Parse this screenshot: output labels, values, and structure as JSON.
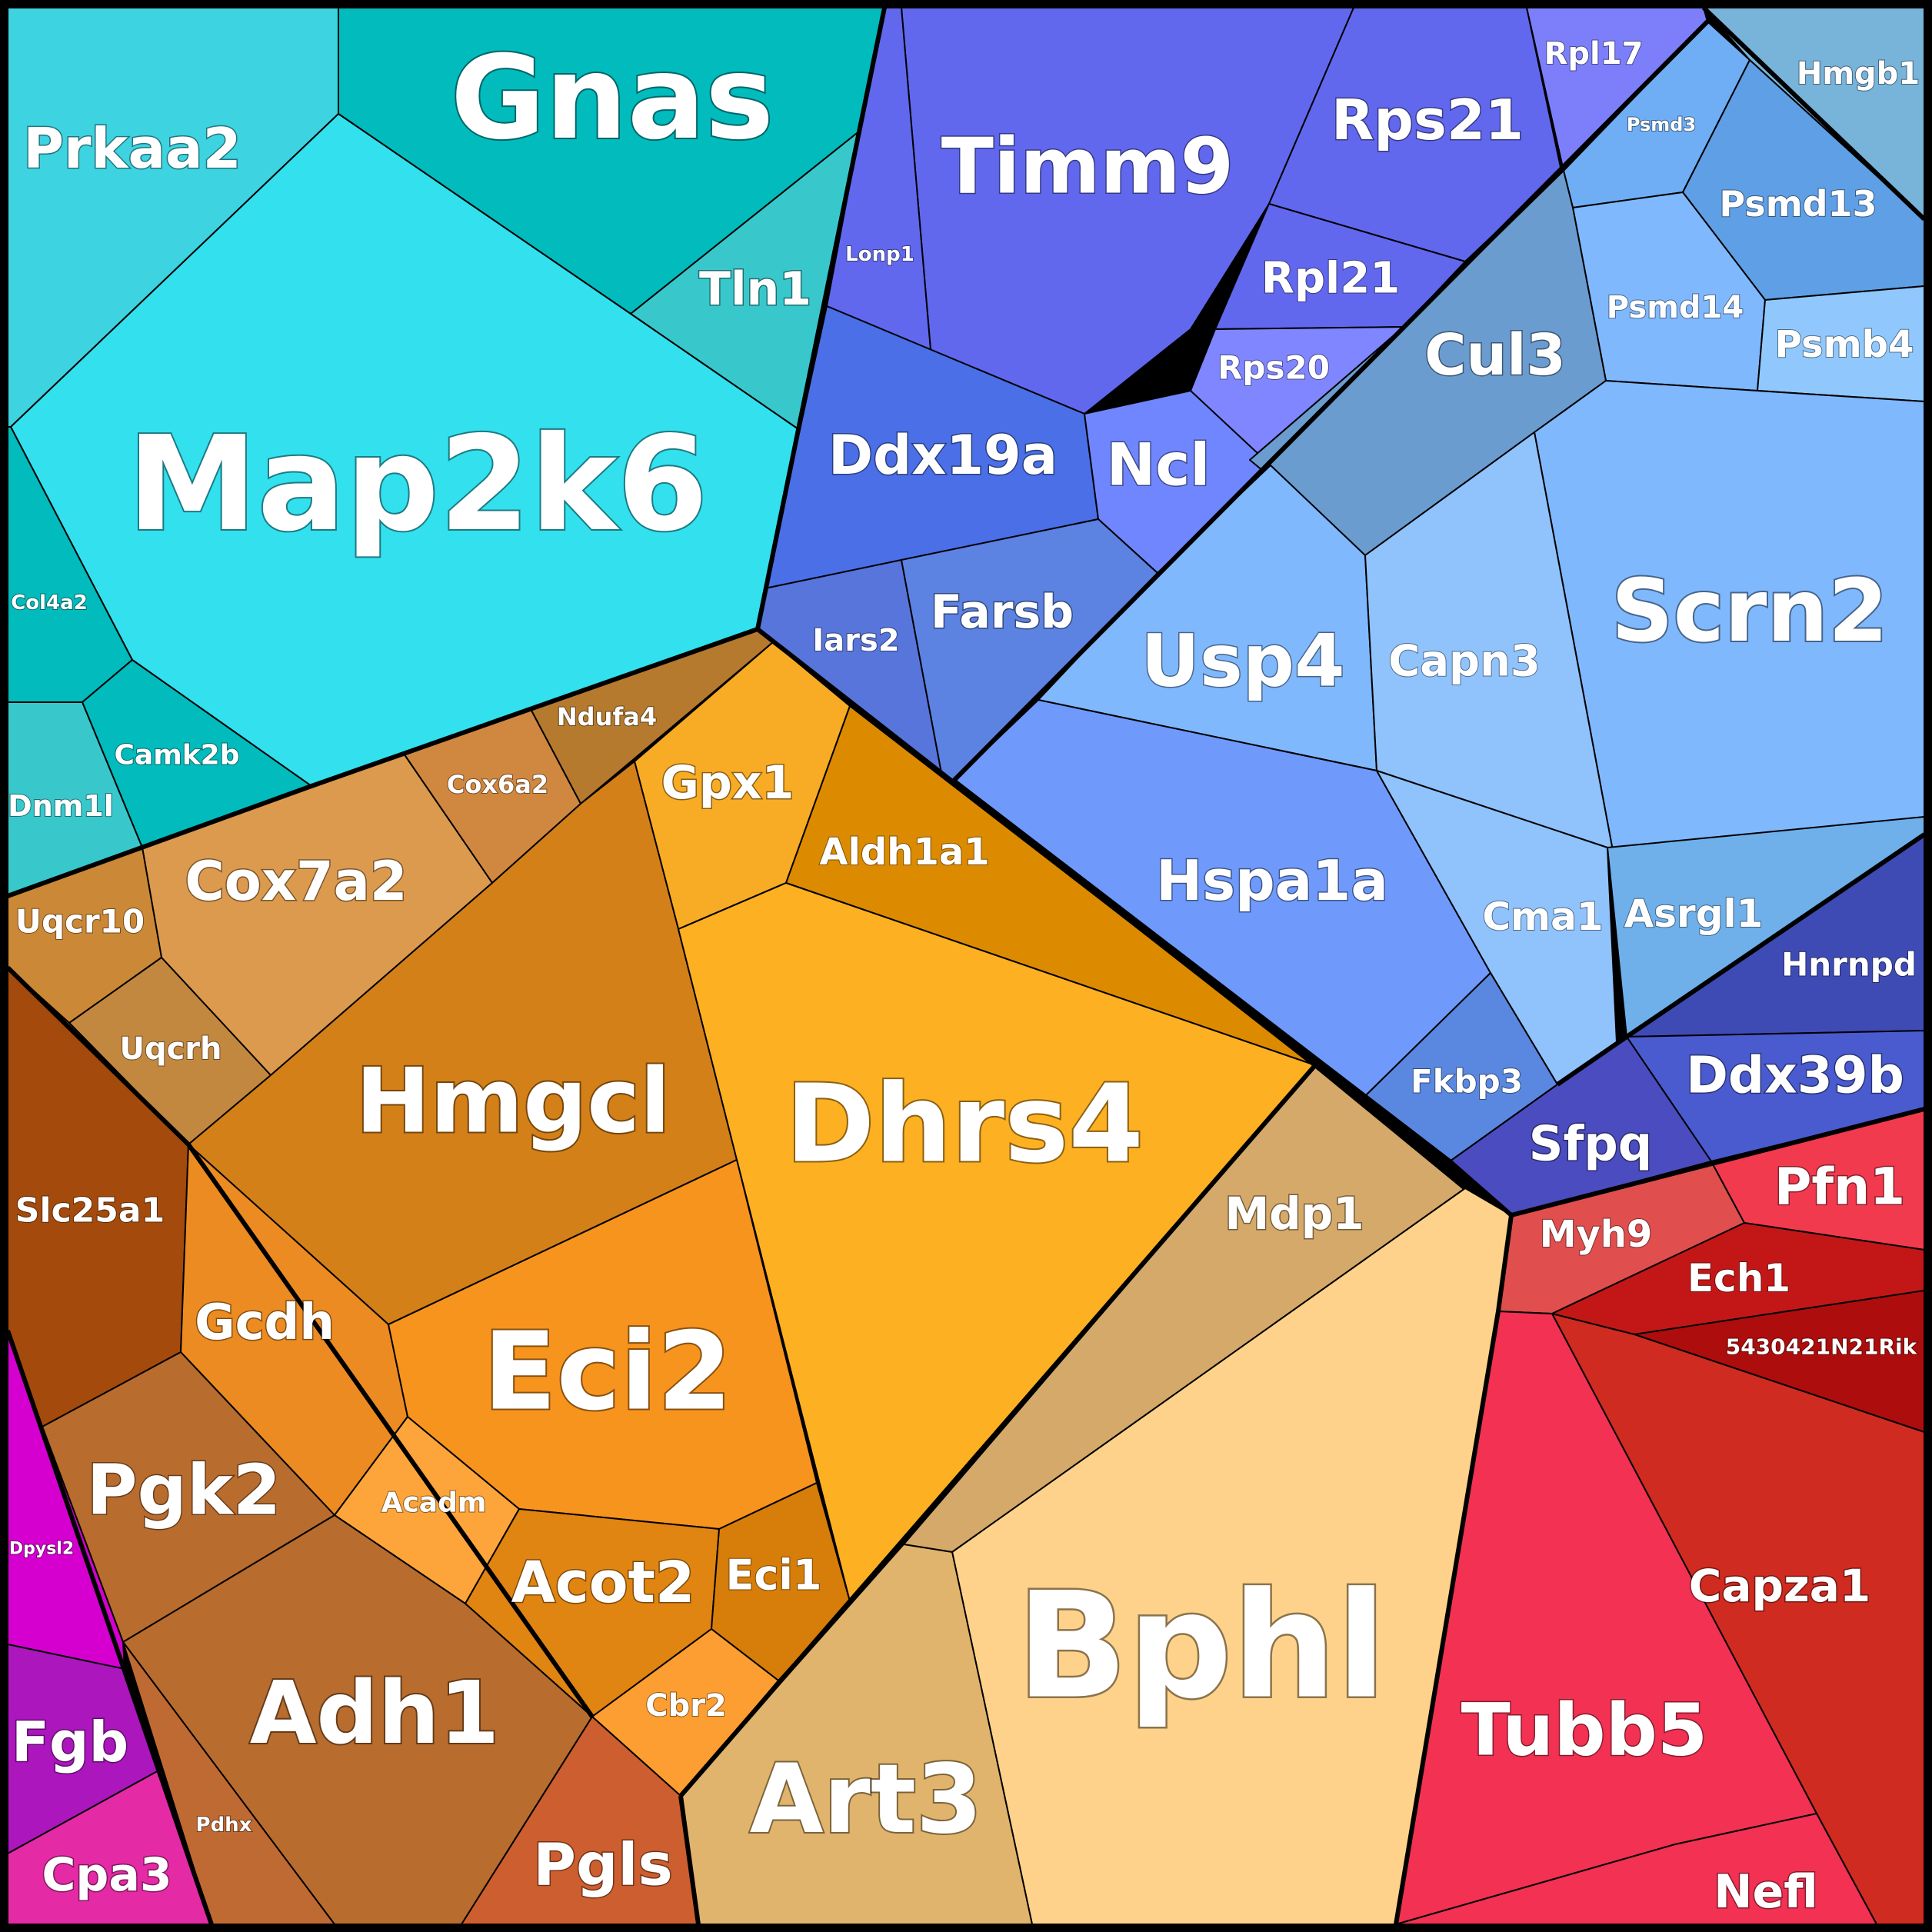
{
  "labels": {
    "gnas": "Gnas",
    "prkaa2": "Prkaa2",
    "tln1": "Tln1",
    "map2k6": "Map2k6",
    "col4a2": "Col4a2",
    "camk2b": "Camk2b",
    "dnm1l": "Dnm1l",
    "timm9": "Timm9",
    "lonp1": "Lonp1",
    "rps21": "Rps21",
    "rpl17": "Rpl17",
    "rpl21": "Rpl21",
    "rps20": "Rps20",
    "ddx19a": "Ddx19a",
    "ncl": "Ncl",
    "iars2": "Iars2",
    "farsb": "Farsb",
    "hmgb1": "Hmgb1",
    "psmd3": "Psmd3",
    "psmd13": "Psmd13",
    "psmd14": "Psmd14",
    "psmb4": "Psmb4",
    "cul3": "Cul3",
    "scrn2": "Scrn2",
    "usp4": "Usp4",
    "capn3": "Capn3",
    "hspa1a": "Hspa1a",
    "cma1": "Cma1",
    "asrgl1": "Asrgl1",
    "fkbp3": "Fkbp3",
    "hnrnpd": "Hnrnpd",
    "ddx39b": "Ddx39b",
    "sfpq": "Sfpq",
    "ndufa4": "Ndufa4",
    "cox6a2": "Cox6a2",
    "cox7a2": "Cox7a2",
    "uqcr10": "Uqcr10",
    "uqcrh": "Uqcrh",
    "gpx1": "Gpx1",
    "aldh1a1": "Aldh1a1",
    "hmgcl": "Hmgcl",
    "dhrs4": "Dhrs4",
    "slc25a1": "Slc25a1",
    "gcdh": "Gcdh",
    "eci2": "Eci2",
    "acadm": "Acadm",
    "acot2": "Acot2",
    "eci1": "Eci1",
    "cbr2": "Cbr2",
    "pgk2": "Pgk2",
    "adh1": "Adh1",
    "pdhx": "Pdhx",
    "pgls": "Pgls",
    "mdp1": "Mdp1",
    "bphl": "Bphl",
    "art3": "Art3",
    "myh9": "Myh9",
    "pfn1": "Pfn1",
    "ech1": "Ech1",
    "gene5430421n21rik": "5430421N21Rik",
    "capza1": "Capza1",
    "tubb5": "Tubb5",
    "nefl": "Nefl",
    "dpysl2": "Dpysl2",
    "fgb": "Fgb",
    "cpa3": "Cpa3"
  },
  "colors": {
    "teal_dark": "#02BBBD",
    "teal_light": "#3DD3E0",
    "teal_mid": "#38C8CC",
    "cyan": "#33E0EE",
    "indigo": "#6168EE",
    "indigo_light": "#7D7FFA",
    "royal": "#4A6FE6",
    "periwinkle": "#7F86FF",
    "sky": "#80B8FD",
    "sky_light": "#90C2FB",
    "steel": "#6B9CD0",
    "cornflower": "#6F9AFC",
    "navy": "#3F4BB5",
    "brown_dark": "#A34A0C",
    "brown_mid": "#B86C2E",
    "copper": "#D88B38",
    "orange": "#F7941E",
    "gold": "#FDB022",
    "tan": "#D4A96A",
    "peach": "#FED28A",
    "red": "#F23153",
    "crimson": "#C31717",
    "rust": "#D02B20",
    "magenta": "#D500D0",
    "purple": "#AC16BD",
    "pink": "#E52AA6"
  }
}
